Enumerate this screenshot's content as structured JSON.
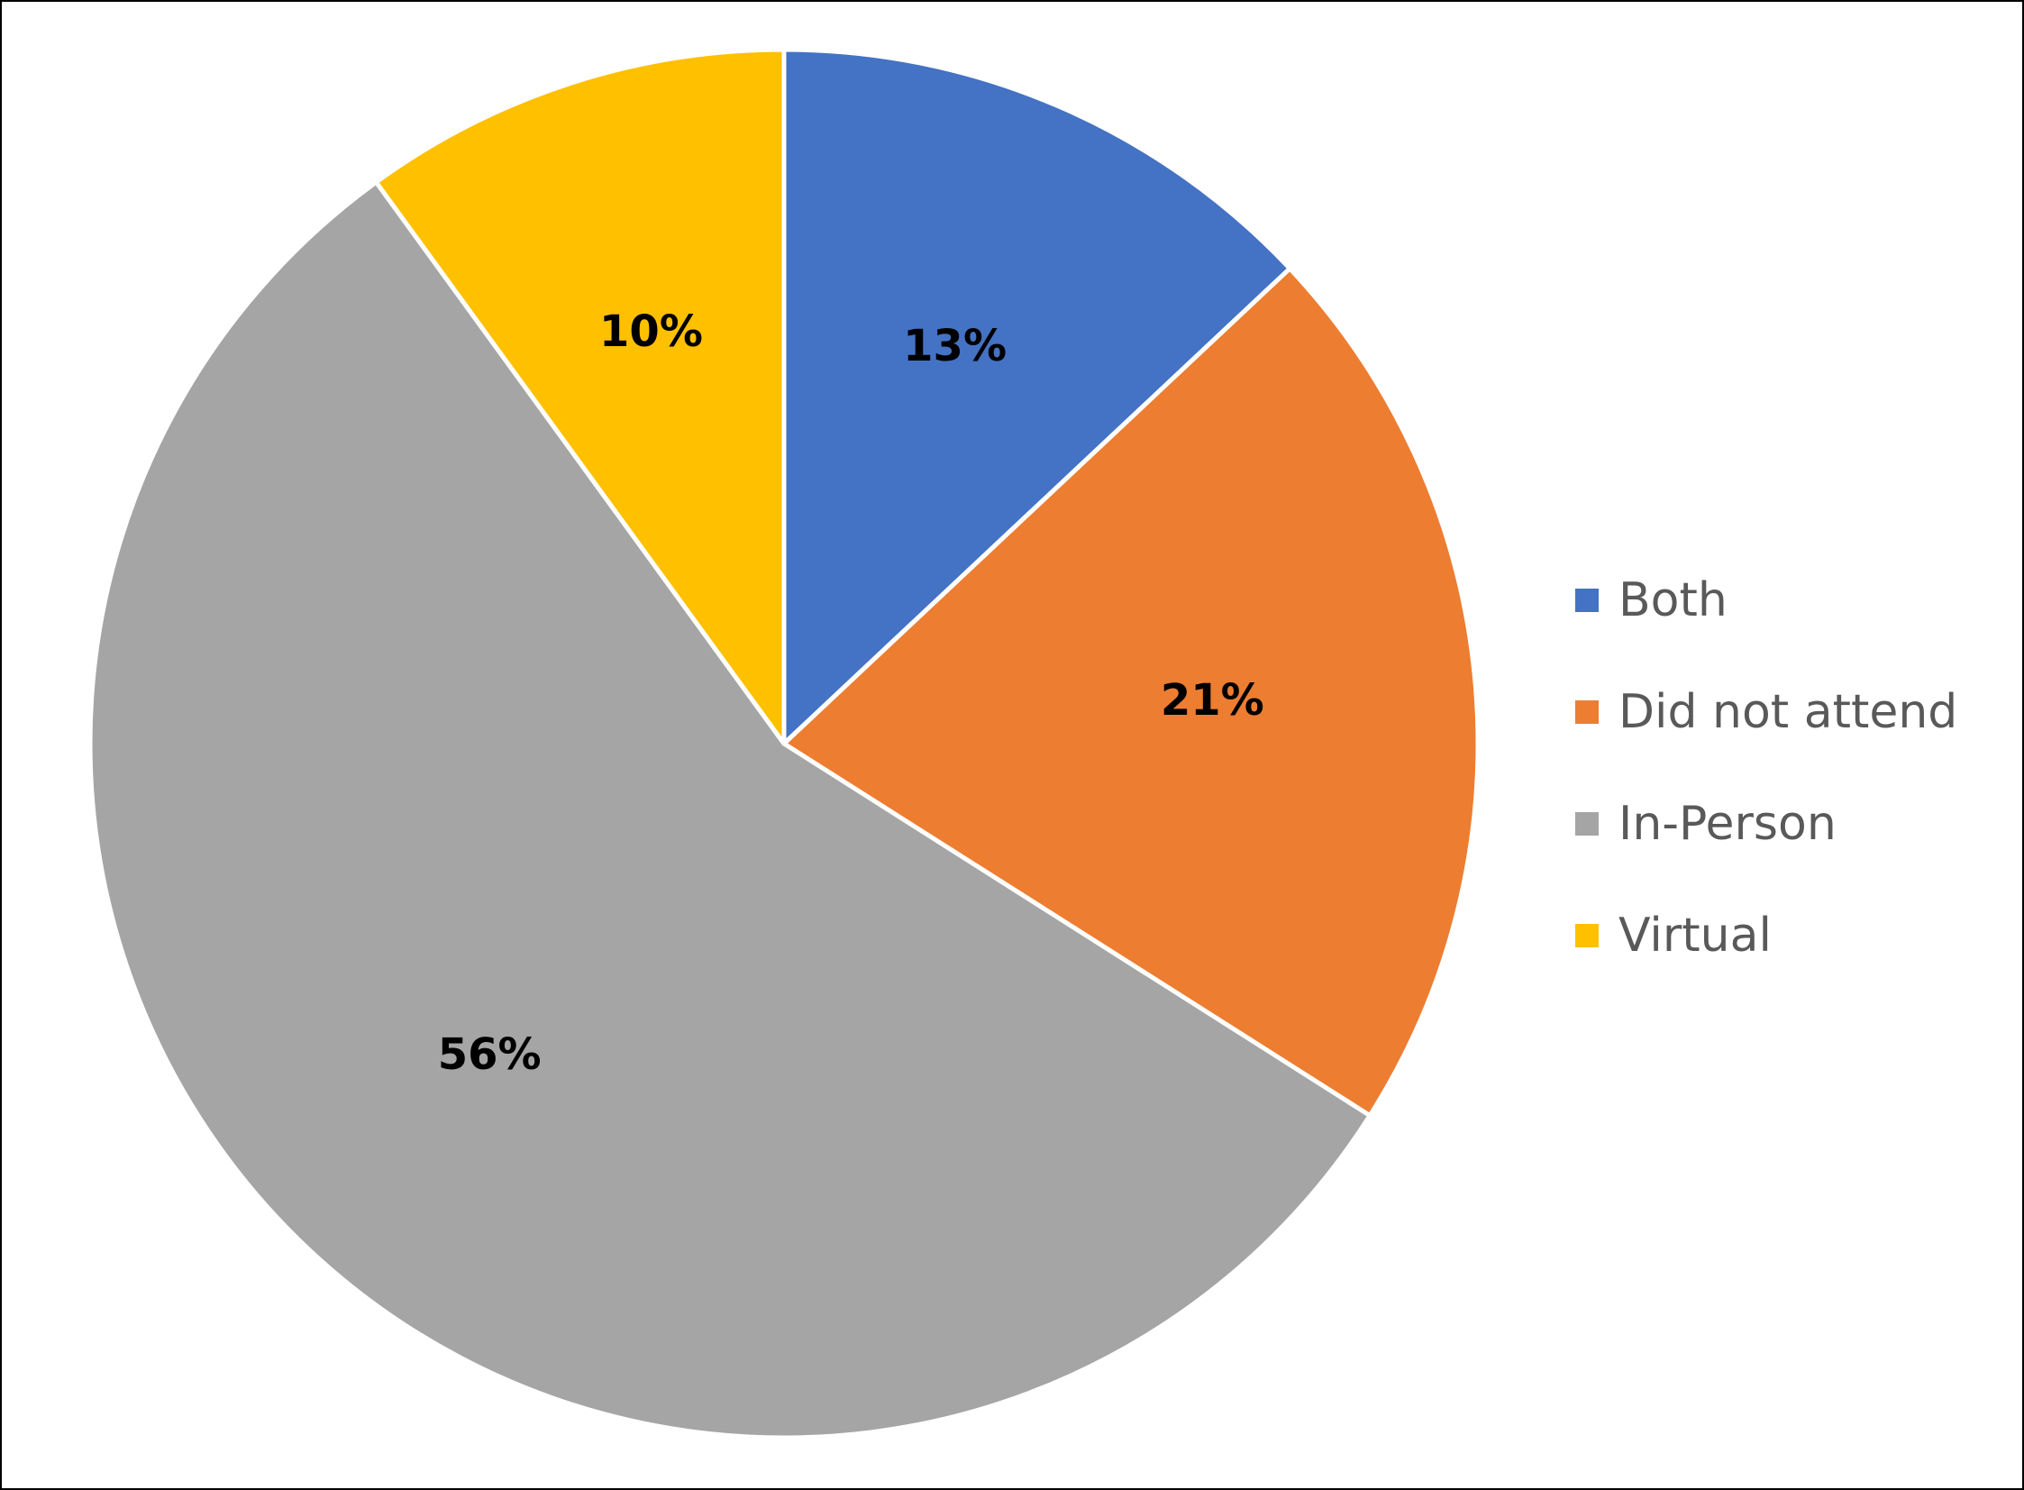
{
  "chart_data": {
    "type": "pie",
    "title": "",
    "categories": [
      "Both",
      "Did not attend",
      "In-Person",
      "Virtual"
    ],
    "values": [
      13,
      21,
      56,
      10
    ],
    "data_labels": [
      "13%",
      "21%",
      "56%",
      "10%"
    ],
    "colors": [
      "#4472C4",
      "#ED7D31",
      "#A5A5A5",
      "#FFC000"
    ],
    "legend_position": "right",
    "start_angle": "12 o'clock",
    "direction": "clockwise"
  }
}
